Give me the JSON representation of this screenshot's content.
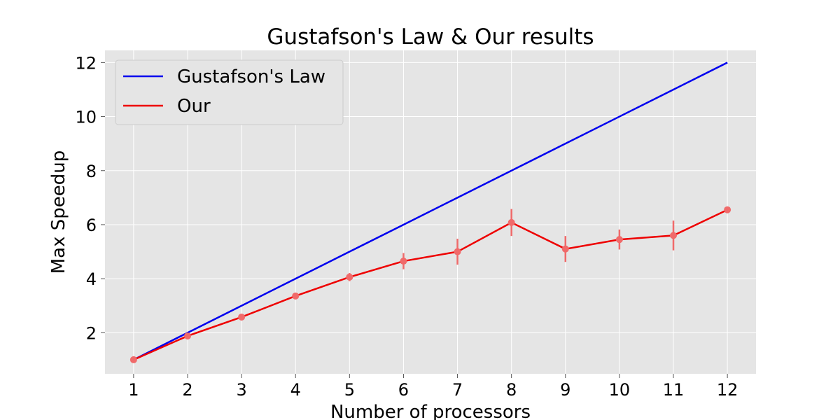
{
  "chart_data": {
    "type": "line",
    "title": "Gustafson's Law & Our results",
    "xlabel": "Number of processors",
    "ylabel": "Max Speedup",
    "x": [
      1,
      2,
      3,
      4,
      5,
      6,
      7,
      8,
      9,
      10,
      11,
      12
    ],
    "x_tick_labels": [
      "1",
      "2",
      "3",
      "4",
      "5",
      "6",
      "7",
      "8",
      "9",
      "10",
      "11",
      "12"
    ],
    "xlim": [
      0.47,
      12.53
    ],
    "ylim": [
      0.48,
      12.45
    ],
    "y_ticks": [
      2,
      4,
      6,
      8,
      10,
      12
    ],
    "y_tick_labels": [
      "2",
      "4",
      "6",
      "8",
      "10",
      "12"
    ],
    "grid": true,
    "legend_position": "top-left",
    "colors": {
      "plot_background": "#e5e5e5",
      "grid": "#ffffff",
      "gustafson_line": "#0000ee",
      "our_line": "#ee0000",
      "our_markers": "#f06a6a"
    },
    "series": [
      {
        "name": "Gustafson's Law",
        "color": "#0000ee",
        "values": [
          1,
          2,
          3,
          4,
          5,
          6,
          7,
          8,
          9,
          10,
          11,
          12
        ]
      },
      {
        "name": "Our",
        "color": "#ee0000",
        "values": [
          1.0,
          1.88,
          2.58,
          3.36,
          4.06,
          4.65,
          5.0,
          6.08,
          5.1,
          5.45,
          5.6,
          6.55
        ],
        "error": [
          0.0,
          0.05,
          0.05,
          0.1,
          0.15,
          0.3,
          0.48,
          0.5,
          0.48,
          0.37,
          0.55,
          0.05
        ]
      }
    ]
  }
}
